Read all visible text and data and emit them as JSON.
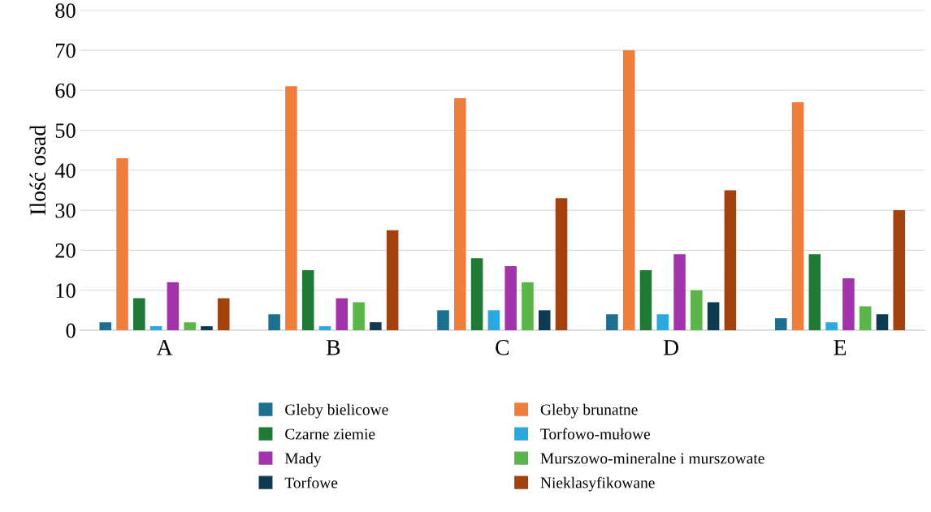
{
  "chart_data": {
    "type": "bar",
    "ylabel": "Ilość osad",
    "categories": [
      "A",
      "B",
      "C",
      "D",
      "E"
    ],
    "series": [
      {
        "name": "Gleby bielicowe",
        "color": "#1d6f8f",
        "values": [
          2,
          4,
          5,
          4,
          3
        ]
      },
      {
        "name": "Gleby brunatne",
        "color": "#ef7d3c",
        "values": [
          43,
          61,
          58,
          70,
          57
        ]
      },
      {
        "name": "Czarne ziemie",
        "color": "#1f7a35",
        "values": [
          8,
          15,
          18,
          15,
          19
        ]
      },
      {
        "name": "Torfowo-mułowe",
        "color": "#2aa8df",
        "values": [
          1,
          1,
          5,
          4,
          2
        ]
      },
      {
        "name": "Mady",
        "color": "#a333ad",
        "values": [
          12,
          8,
          16,
          19,
          13
        ]
      },
      {
        "name": "Murszowo-mineralne i murszowate",
        "color": "#5ab648",
        "values": [
          2,
          7,
          12,
          10,
          6
        ]
      },
      {
        "name": "Torfowe",
        "color": "#0e3a52",
        "values": [
          1,
          2,
          5,
          7,
          4
        ]
      },
      {
        "name": "Nieklasyfikowane",
        "color": "#a4420f",
        "values": [
          8,
          25,
          33,
          35,
          30
        ]
      }
    ],
    "ylim": [
      0,
      80
    ],
    "yticks": [
      0,
      10,
      20,
      30,
      40,
      50,
      60,
      70,
      80
    ],
    "grid": "y",
    "legend": "bottom"
  }
}
